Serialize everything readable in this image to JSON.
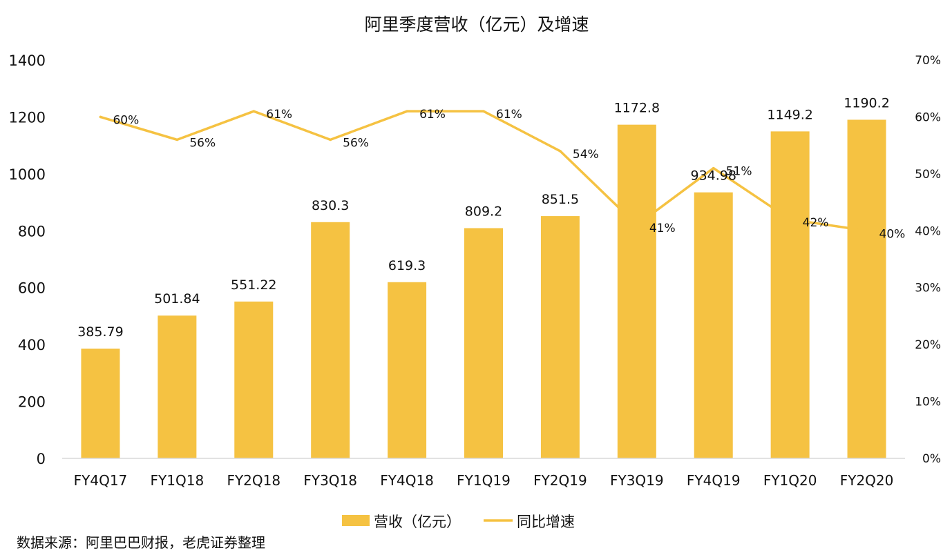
{
  "chart_data": {
    "type": "bar",
    "title": "阿里季度营收（亿元）及增速",
    "categories": [
      "FY4Q17",
      "FY1Q18",
      "FY2Q18",
      "FY3Q18",
      "FY4Q18",
      "FY1Q19",
      "FY2Q19",
      "FY3Q19",
      "FY4Q19",
      "FY1Q20",
      "FY2Q20"
    ],
    "series": [
      {
        "name": "营收（亿元）",
        "type": "bar",
        "axis": "left",
        "color": "#F5C242",
        "values": [
          385.79,
          501.84,
          551.22,
          830.3,
          619.3,
          809.2,
          851.5,
          1172.8,
          934.98,
          1149.2,
          1190.2
        ],
        "labels": [
          "385.79",
          "501.84",
          "551.22",
          "830.3",
          "619.3",
          "809.2",
          "851.5",
          "1172.8",
          "934.98",
          "1149.2",
          "1190.2"
        ]
      },
      {
        "name": "同比增速",
        "type": "line",
        "axis": "right",
        "color": "#F5C242",
        "values": [
          60,
          56,
          61,
          56,
          61,
          61,
          54,
          41,
          51,
          42,
          40
        ],
        "labels": [
          "60%",
          "56%",
          "61%",
          "56%",
          "61%",
          "61%",
          "54%",
          "41%",
          "51%",
          "42%",
          "40%"
        ]
      }
    ],
    "y_left": {
      "min": 0,
      "max": 1400,
      "ticks": [
        "0",
        "200",
        "400",
        "600",
        "800",
        "1000",
        "1200",
        "1400"
      ]
    },
    "y_right": {
      "min": 0,
      "max": 70,
      "ticks": [
        "0%",
        "10%",
        "20%",
        "30%",
        "40%",
        "50%",
        "60%",
        "70%"
      ]
    },
    "grid": false,
    "legend_position": "bottom"
  },
  "source_note": "数据来源：阿里巴巴财报，老虎证券整理"
}
